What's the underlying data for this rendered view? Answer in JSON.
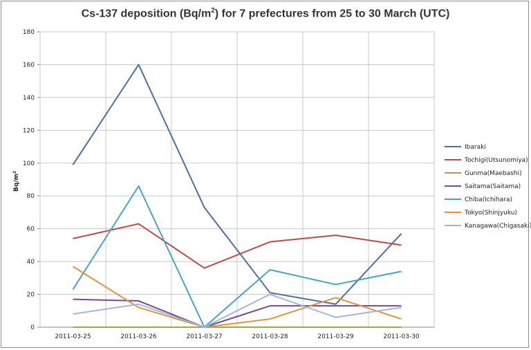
{
  "chart_data": {
    "type": "line",
    "title_prefix": "Cs-137 deposition (Bq/m",
    "title_sup": "2",
    "title_suffix": ") for 7 prefectures from 25 to 30 March (UTC)",
    "ylabel_prefix": "Bq/m",
    "ylabel_sup": "2",
    "xlabel": "",
    "categories": [
      "2011-03-25",
      "2011-03-26",
      "2011-03-27",
      "2011-03-28",
      "2011-03-29",
      "2011-03-30"
    ],
    "ylim": [
      0,
      180
    ],
    "yticks": [
      0,
      20,
      40,
      60,
      80,
      100,
      120,
      140,
      160,
      180
    ],
    "grid": true,
    "legend_position": "right",
    "series": [
      {
        "name": "Ibaraki",
        "color": "#4a6fa5",
        "values": [
          99,
          160,
          73,
          21,
          14,
          57
        ]
      },
      {
        "name": "Tochigi(Utsunomiya)",
        "color": "#b94a48",
        "values": [
          54,
          63,
          36,
          52,
          56,
          50
        ]
      },
      {
        "name": "Gunma(Maebashi)",
        "color": "#9aaa3c",
        "values": [
          0,
          0,
          0,
          0,
          0,
          0
        ]
      },
      {
        "name": "Saitama(Saitama)",
        "color": "#6f4b94",
        "values": [
          17,
          16,
          0,
          13,
          13,
          13
        ]
      },
      {
        "name": "Chiba(Ichihara)",
        "color": "#45a3c3",
        "values": [
          23,
          86,
          0,
          35,
          26,
          34
        ]
      },
      {
        "name": "Tokyo(Shinjyuku)",
        "color": "#e3913c",
        "values": [
          37,
          12,
          0,
          5,
          18,
          5
        ]
      },
      {
        "name": "Kanagawa(Chigasaki)",
        "color": "#a6b4d8",
        "values": [
          8,
          14,
          0,
          20,
          6,
          12
        ]
      }
    ]
  }
}
